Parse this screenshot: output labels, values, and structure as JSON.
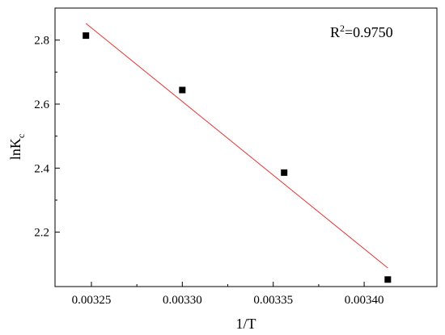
{
  "chart_data": {
    "type": "scatter",
    "xlabel": "1/T",
    "ylabel": {
      "main": "lnK",
      "sub": "c"
    },
    "xlim": [
      0.00323,
      0.00344
    ],
    "ylim": [
      2.03,
      2.9
    ],
    "x_ticks": [
      0.00325,
      0.0033,
      0.00335,
      0.0034
    ],
    "x_tick_labels": [
      "0.00325",
      "0.00330",
      "0.00335",
      "0.00340"
    ],
    "y_ticks": [
      2.2,
      2.4,
      2.6,
      2.8
    ],
    "y_tick_labels": [
      "2.2",
      "2.4",
      "2.6",
      "2.8"
    ],
    "series": [
      {
        "points": [
          {
            "x": 0.003247,
            "y": 2.814
          },
          {
            "x": 0.0033,
            "y": 2.644
          },
          {
            "x": 0.003356,
            "y": 2.386
          },
          {
            "x": 0.003413,
            "y": 2.052
          }
        ],
        "marker": "square",
        "color": "#000000"
      }
    ],
    "fit_line": {
      "x": [
        0.003247,
        0.003413
      ],
      "y": [
        2.852,
        2.088
      ],
      "color": "#e8302f"
    },
    "annotation": {
      "base": "R",
      "sup": "2",
      "rest": "=0.9750"
    },
    "grid": false,
    "legend": "none"
  }
}
